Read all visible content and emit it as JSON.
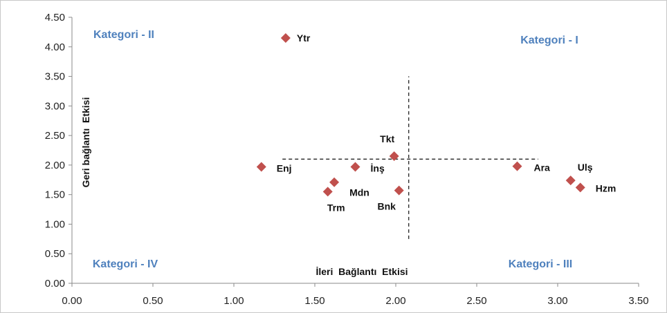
{
  "chart_data": {
    "type": "scatter",
    "title": "",
    "xlabel": "İleri  Bağlantı  Etkisi",
    "ylabel": "Geri bağlantı  Etkisi",
    "xlim": [
      0,
      3.5
    ],
    "ylim": [
      0,
      4.5
    ],
    "x_ticks": [
      "0.00",
      "0.50",
      "1.00",
      "1.50",
      "2.00",
      "2.50",
      "3.00",
      "3.50"
    ],
    "y_ticks": [
      "0.00",
      "0.50",
      "1.00",
      "1.50",
      "2.00",
      "2.50",
      "3.00",
      "3.50",
      "4.00",
      "4.50"
    ],
    "grid": false,
    "marker": "diamond",
    "marker_color": "#c0504d",
    "series": [
      {
        "points": [
          {
            "label": "Ytr",
            "x": 1.32,
            "y": 4.15
          },
          {
            "label": "Enj",
            "x": 1.17,
            "y": 1.97
          },
          {
            "label": "Tkt",
            "x": 1.99,
            "y": 2.15
          },
          {
            "label": "İnş",
            "x": 1.75,
            "y": 1.97
          },
          {
            "label": "Mdn",
            "x": 1.62,
            "y": 1.71
          },
          {
            "label": "Trm",
            "x": 1.58,
            "y": 1.55
          },
          {
            "label": "Bnk",
            "x": 2.02,
            "y": 1.57
          },
          {
            "label": "Ara",
            "x": 2.75,
            "y": 1.98
          },
          {
            "label": "Ulş",
            "x": 3.08,
            "y": 1.74
          },
          {
            "label": "Hzm",
            "x": 3.14,
            "y": 1.62
          }
        ]
      }
    ],
    "reference_lines": [
      {
        "orientation": "vertical",
        "x": 2.08,
        "y_from": 0.75,
        "y_to": 3.5,
        "style": "dashed"
      },
      {
        "orientation": "horizontal",
        "y": 2.1,
        "x_from": 1.3,
        "x_to": 2.88,
        "style": "dashed"
      }
    ],
    "quadrant_labels": [
      {
        "text": "Kategori - II",
        "corner": "top-left"
      },
      {
        "text": "Kategori - I",
        "corner": "top-right"
      },
      {
        "text": "Kategori - IV",
        "corner": "bottom-left"
      },
      {
        "text": "Kategori - III",
        "corner": "bottom-right"
      }
    ],
    "quadrant_label_color": "#4f81bd"
  }
}
